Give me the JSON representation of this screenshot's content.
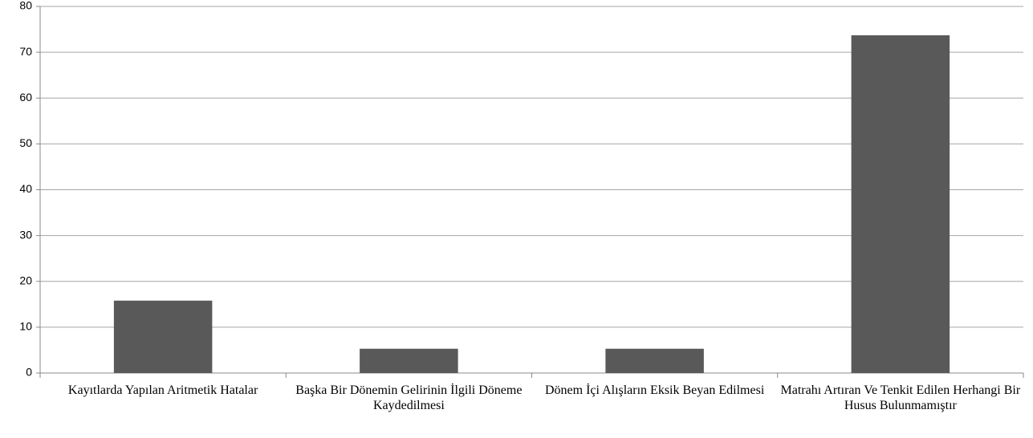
{
  "chart_data": {
    "type": "bar",
    "categories": [
      "Kayıtlarda Yapılan Aritmetik Hatalar",
      "Başka Bir Dönemin Gelirinin İlgili Döneme Kaydedilmesi",
      "Dönem İçi Alışların Eksik Beyan Edilmesi",
      "Matrahı Artıran Ve Tenkit Edilen Herhangi Bir Husus Bulunmamıştır"
    ],
    "values": [
      15.8,
      5.3,
      5.3,
      73.7
    ],
    "color": "#595959",
    "ylim": [
      0,
      80
    ],
    "yticks": [
      0,
      10,
      20,
      30,
      40,
      50,
      60,
      70,
      80
    ],
    "grid": true
  }
}
